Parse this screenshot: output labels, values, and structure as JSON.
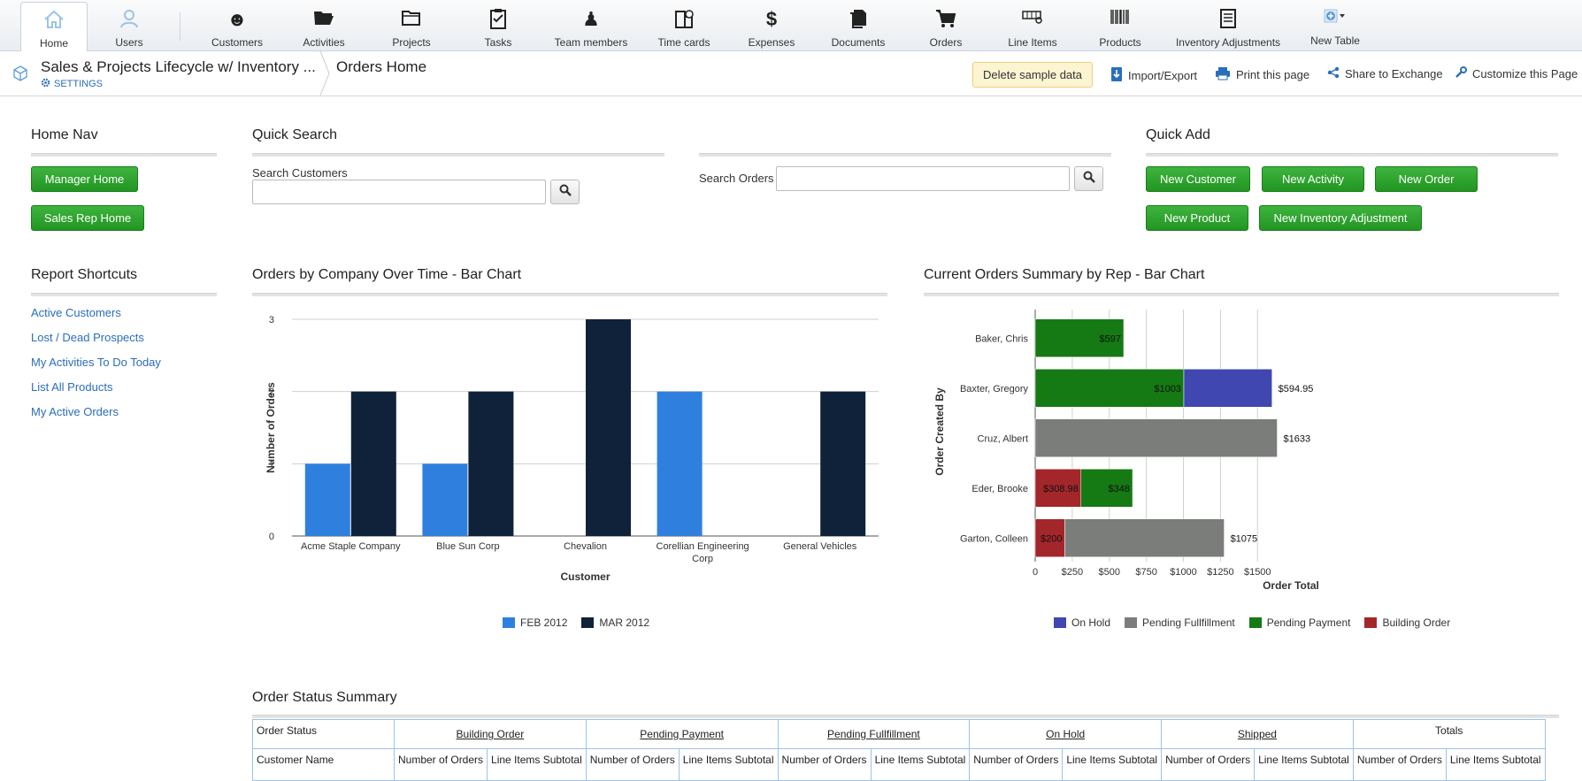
{
  "nav": {
    "items": [
      {
        "label": "Home",
        "icon": "home-icon"
      },
      {
        "label": "Users",
        "icon": "user-icon"
      },
      {
        "label": "Customers",
        "icon": "smiley-icon"
      },
      {
        "label": "Activities",
        "icon": "folder-open-icon"
      },
      {
        "label": "Projects",
        "icon": "folder-icon"
      },
      {
        "label": "Tasks",
        "icon": "clipboard-icon"
      },
      {
        "label": "Team members",
        "icon": "chess-pawn-icon"
      },
      {
        "label": "Time cards",
        "icon": "building-clock-icon"
      },
      {
        "label": "Expenses",
        "icon": "dollar-icon"
      },
      {
        "label": "Documents",
        "icon": "documents-icon"
      },
      {
        "label": "Orders",
        "icon": "cart-icon"
      },
      {
        "label": "Line Items",
        "icon": "line-items-icon"
      },
      {
        "label": "Products",
        "icon": "barcode-icon"
      },
      {
        "label": "Inventory Adjustments",
        "icon": "checklist-icon"
      },
      {
        "label": "New Table",
        "icon": "add-table-icon"
      }
    ]
  },
  "header": {
    "app_title": "Sales & Projects Lifecycle w/ Inventory ...",
    "settings_label": "SETTINGS",
    "page_title": "Orders Home",
    "delete_sample": "Delete sample data",
    "import_export": "Import/Export",
    "print": "Print this page",
    "share": "Share to Exchange",
    "customize": "Customize this Page"
  },
  "home_nav": {
    "title": "Home Nav",
    "buttons": [
      "Manager Home",
      "Sales Rep Home"
    ]
  },
  "quick_search": {
    "title": "Quick Search",
    "customers_label": "Search Customers",
    "customers_value": "",
    "orders_label": "Search Orders",
    "orders_value": ""
  },
  "quick_add": {
    "title": "Quick Add",
    "buttons": [
      "New Customer",
      "New Activity",
      "New Order",
      "New Product",
      "New Inventory Adjustment"
    ]
  },
  "report_shortcuts": {
    "title": "Report Shortcuts",
    "links": [
      "Active Customers",
      "Lost / Dead Prospects",
      "My Activities To Do Today",
      "List All Products",
      "My Active Orders"
    ]
  },
  "chart_data": [
    {
      "type": "bar",
      "title": "Orders by Company Over Time - Bar Chart",
      "xlabel": "Customer",
      "ylabel": "Number of Orders",
      "categories": [
        "Acme Staple Company",
        "Blue Sun Corp",
        "Chevalion",
        "Corellian Engineering Corp",
        "General Vehicles"
      ],
      "category_lines": [
        [
          "Acme Staple Company"
        ],
        [
          "Blue Sun Corp"
        ],
        [
          "Chevalion"
        ],
        [
          "Corellian Engineering",
          "Corp"
        ],
        [
          "General Vehicles"
        ]
      ],
      "series": [
        {
          "name": "FEB 2012",
          "values": [
            1,
            1,
            0,
            2,
            0
          ],
          "color": "#2f80de"
        },
        {
          "name": "MAR 2012",
          "values": [
            2,
            2,
            3,
            0,
            2
          ],
          "color": "#10223a"
        }
      ],
      "ylim": [
        0,
        3
      ],
      "yticks": [
        "0",
        "1",
        "2",
        "3"
      ],
      "grid": true,
      "legend": "bottom"
    },
    {
      "type": "bar",
      "orientation": "horizontal",
      "stacked": true,
      "title": "Current Orders Summary by Rep - Bar Chart",
      "xlabel": "Order Total",
      "ylabel": "Order Created By",
      "categories": [
        "Baker, Chris",
        "Baxter, Gregory",
        "Cruz, Albert",
        "Eder, Brooke",
        "Garton, Colleen"
      ],
      "series": [
        {
          "name": "On Hold",
          "color": "#4047b0",
          "values": [
            0,
            594.95,
            0,
            0,
            0
          ],
          "labels": [
            "",
            "$594.95",
            "",
            "",
            ""
          ]
        },
        {
          "name": "Pending Fullfillment",
          "color": "#7b7d7a",
          "values": [
            0,
            0,
            1633,
            0,
            1075
          ],
          "labels": [
            "",
            "",
            "$1633",
            "",
            "$1075"
          ]
        },
        {
          "name": "Pending Payment",
          "color": "#157a14",
          "values": [
            597,
            1003,
            0,
            348,
            0
          ],
          "labels": [
            "$597",
            "$1003",
            "",
            "$348",
            ""
          ]
        },
        {
          "name": "Building Order",
          "color": "#a3262a",
          "values": [
            0,
            0,
            0,
            308.98,
            200
          ],
          "labels": [
            "",
            "",
            "",
            "$308.98",
            "$200"
          ]
        }
      ],
      "stack_order": [
        "Building Order",
        "Pending Payment",
        "On Hold",
        "Pending Fullfillment"
      ],
      "xlim": [
        0,
        1600
      ],
      "xticks": [
        [
          "0",
          0
        ],
        [
          "$250",
          250
        ],
        [
          "$500",
          500
        ],
        [
          "$750",
          750
        ],
        [
          "$1000",
          1000
        ],
        [
          "$1250",
          1250
        ],
        [
          "$1500",
          1500
        ]
      ],
      "grid": true,
      "legend": "bottom"
    }
  ],
  "order_status": {
    "title": "Order Status Summary",
    "row1": [
      "Order Status",
      "Building Order",
      "Pending Payment",
      "Pending Fullfillment",
      "On Hold",
      "Shipped",
      "Totals"
    ],
    "customer_name": "Customer Name",
    "num_orders": "Number of Orders",
    "line_items": "Line Items Subtotal"
  }
}
